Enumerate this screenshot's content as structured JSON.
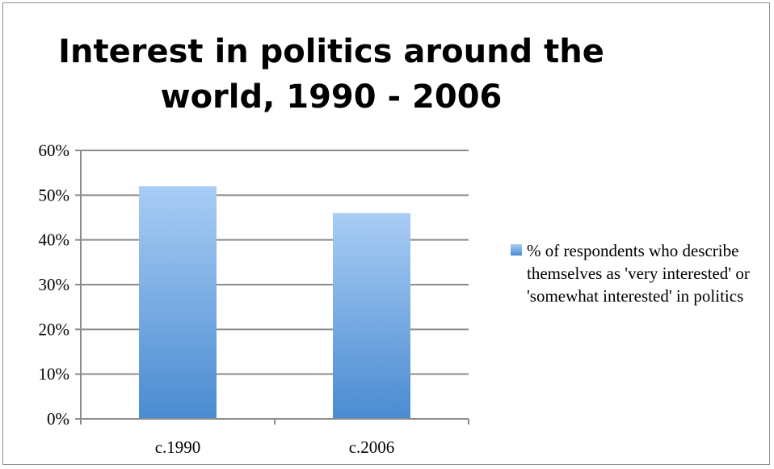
{
  "chart_data": {
    "type": "bar",
    "title": "Interest in politics around the world, 1990 - 2006",
    "categories": [
      "c.1990",
      "c.2006"
    ],
    "series": [
      {
        "name": "% of respondents who describe themselves as 'very interested' or 'somewhat interested' in politics",
        "values": [
          52,
          46
        ]
      }
    ],
    "y_ticks": [
      "0%",
      "10%",
      "20%",
      "30%",
      "40%",
      "50%",
      "60%"
    ],
    "ylim": [
      0,
      60
    ],
    "grid": true,
    "legend_position": "right",
    "colors": {
      "bar_top": "#a9cdf5",
      "bar_bottom": "#4a8bd1",
      "grid": "#8c8c8c"
    }
  }
}
